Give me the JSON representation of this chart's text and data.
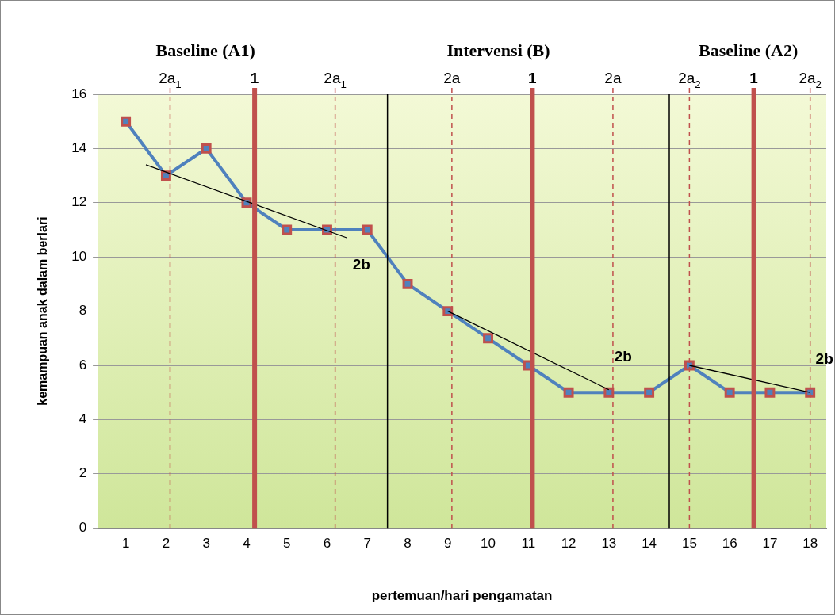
{
  "chart_data": {
    "type": "line",
    "xlabel": "pertemuan/hari pengamatan",
    "ylabel": "kemampuan anak dalam berlari",
    "annotations": [
      "Baseline (A1)",
      "Intervensi (B)",
      "Baseline (A2)",
      "2a$_{1}$",
      "1",
      "2a$_{1}$",
      "2a",
      "1",
      "2a",
      "2a$_{2}$",
      "1",
      "2a$_{2}$",
      "2b",
      "2b",
      "2b"
    ],
    "xlim": [
      0.3,
      18.4
    ],
    "xticks": [
      1,
      2,
      3,
      4,
      5,
      6,
      7,
      8,
      9,
      10,
      11,
      12,
      13,
      14,
      15,
      16,
      17,
      18
    ],
    "ylim": [
      0,
      16
    ],
    "yticks": [
      0,
      2,
      4,
      6,
      8,
      10,
      12,
      14,
      16
    ],
    "grid": "y",
    "legend": false,
    "marker": "square",
    "series": [
      {
        "color": "#4f81bd",
        "x": [
          1,
          2,
          3,
          4,
          5,
          6,
          7,
          8,
          9,
          10,
          11,
          12,
          13,
          14,
          15,
          16,
          17,
          18
        ],
        "values": [
          15,
          13,
          14,
          12,
          11,
          11,
          11,
          9,
          8,
          7,
          6,
          5,
          5,
          5,
          6,
          5,
          5,
          5
        ]
      },
      {
        "type": "line",
        "color": "#000000",
        "marker": "none",
        "x": [
          1.5,
          6.5
        ],
        "values": [
          13.4,
          10.7
        ]
      },
      {
        "type": "line",
        "color": "#000000",
        "marker": "none",
        "x": [
          9,
          13
        ],
        "values": [
          8,
          5.1
        ]
      },
      {
        "type": "line",
        "color": "#000000",
        "marker": "none",
        "x": [
          15,
          18
        ],
        "values": [
          6,
          5
        ]
      }
    ],
    "ref_lines": [
      {
        "axis": "x",
        "value": 2.1,
        "color": "#c0504d",
        "line_style": "dashed"
      },
      {
        "axis": "x",
        "value": 4.2,
        "color": "#c0504d",
        "line_style": "solid"
      },
      {
        "axis": "x",
        "value": 6.2,
        "color": "#c0504d",
        "line_style": "dashed"
      },
      {
        "axis": "x",
        "value": 7.5,
        "color": "#000000",
        "line_style": "solid"
      },
      {
        "axis": "x",
        "value": 9.1,
        "color": "#c0504d",
        "line_style": "dashed"
      },
      {
        "axis": "x",
        "value": 11.1,
        "color": "#c0504d",
        "line_style": "solid"
      },
      {
        "axis": "x",
        "value": 13.1,
        "color": "#c0504d",
        "line_style": "dashed"
      },
      {
        "axis": "x",
        "value": 14.5,
        "color": "#000000",
        "line_style": "solid"
      },
      {
        "axis": "x",
        "value": 15,
        "color": "#c0504d",
        "line_style": "dashed"
      },
      {
        "axis": "x",
        "value": 16.6,
        "color": "#c0504d",
        "line_style": "solid"
      },
      {
        "axis": "x",
        "value": 18,
        "color": "#c0504d",
        "line_style": "dashed"
      }
    ]
  }
}
